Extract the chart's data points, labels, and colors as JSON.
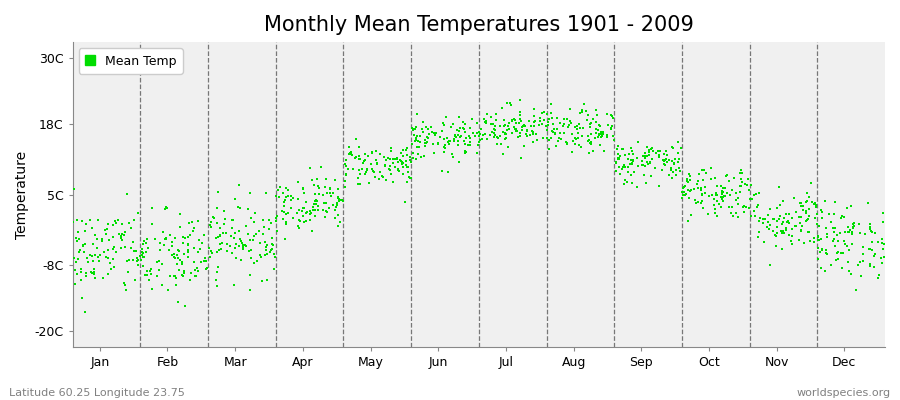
{
  "title": "Monthly Mean Temperatures 1901 - 2009",
  "ylabel": "Temperature",
  "xlabel_bottom_left": "Latitude 60.25 Longitude 23.75",
  "xlabel_bottom_right": "worldspecies.org",
  "ytick_labels": [
    "-20C",
    "-8C",
    "5C",
    "18C",
    "30C"
  ],
  "ytick_values": [
    -20,
    -8,
    5,
    18,
    30
  ],
  "ylim": [
    -23,
    33
  ],
  "xlim": [
    0,
    12
  ],
  "months": [
    "Jan",
    "Feb",
    "Mar",
    "Apr",
    "May",
    "Jun",
    "Jul",
    "Aug",
    "Sep",
    "Oct",
    "Nov",
    "Dec"
  ],
  "dot_color": "#00DD00",
  "dot_size": 3,
  "background_color": "#F0F0F0",
  "legend_label": "Mean Temp",
  "title_fontsize": 15,
  "axis_label_fontsize": 10,
  "tick_fontsize": 9,
  "n_years": 109,
  "mean_temps": [
    -5.5,
    -6.5,
    -3.0,
    3.5,
    10.5,
    15.0,
    17.5,
    16.5,
    11.0,
    5.5,
    0.5,
    -3.5
  ],
  "std_temps": [
    4.2,
    4.2,
    3.5,
    2.5,
    2.0,
    2.0,
    2.0,
    2.0,
    2.0,
    2.5,
    3.0,
    3.5
  ],
  "seed": 42
}
